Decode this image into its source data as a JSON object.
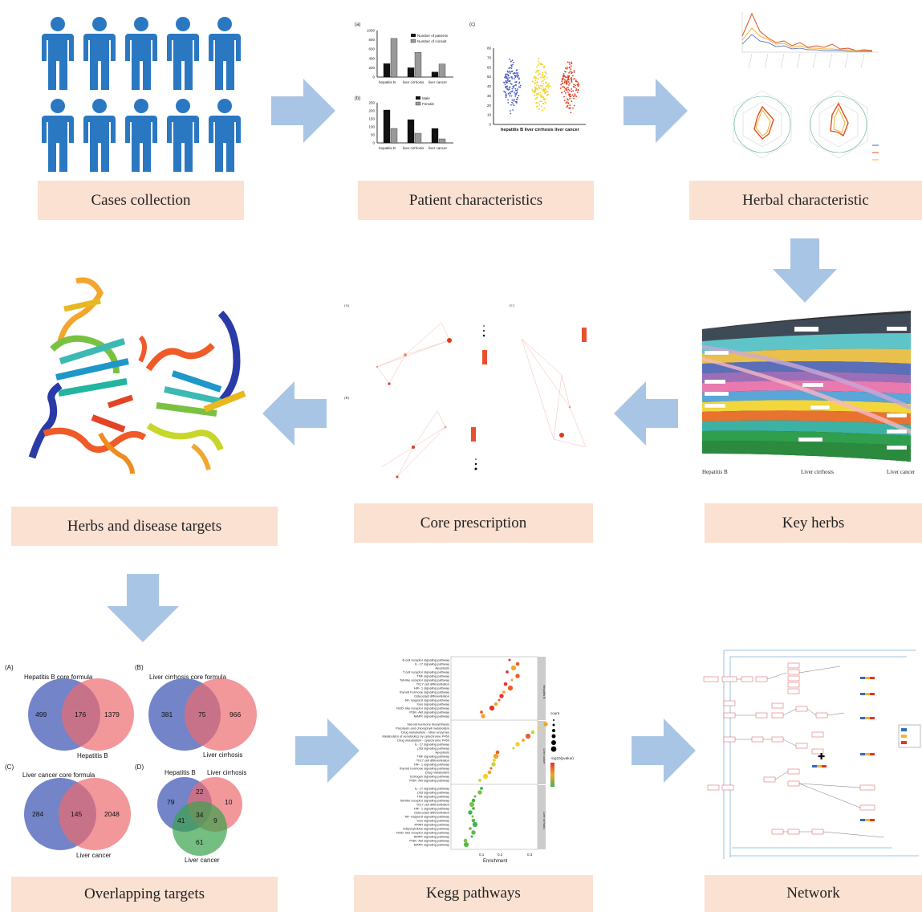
{
  "steps": {
    "cases": "Cases collection",
    "patient": "Patient characteristics",
    "herbal": "Herbal characteristic",
    "targets": "Herbs and disease targets",
    "core": "Core prescription",
    "key": "Key herbs",
    "overlap": "Overlapping targets",
    "kegg": "Kegg pathways",
    "network": "Network"
  },
  "patient_panel": {
    "a_tag": "(a)",
    "b_tag": "(b)",
    "c_tag": "(c)",
    "legend_a1": "Number of patients",
    "legend_a2": "Number of consult",
    "legend_b1": "Male",
    "legend_b2": "Female",
    "cats": [
      "hepatitis B",
      "liver cirrhosis",
      "liver cancer"
    ],
    "c_xlabel": "hepatitis B  liver cirrhosis  liver cancer",
    "a_ticks": [
      "1000",
      "800",
      "600",
      "400",
      "200",
      "0"
    ],
    "b_ticks": [
      "250",
      "200",
      "150",
      "100",
      "50",
      "0"
    ],
    "c_ticks": [
      "80",
      "70",
      "60",
      "50",
      "40",
      "30",
      "20",
      "10",
      "0"
    ]
  },
  "chart_data": [
    {
      "type": "bar",
      "title": "(a)",
      "categories": [
        "hepatitis B",
        "liver cirrhosis",
        "liver cancer"
      ],
      "series": [
        {
          "name": "Number of patients",
          "values": [
            290,
            200,
            110
          ]
        },
        {
          "name": "Number of consult",
          "values": [
            830,
            530,
            280
          ]
        }
      ],
      "ylim": [
        0,
        1000
      ]
    },
    {
      "type": "bar",
      "title": "(b)",
      "categories": [
        "hepatitis B",
        "liver cirrhosis",
        "liver cancer"
      ],
      "series": [
        {
          "name": "Male",
          "values": [
            205,
            145,
            90
          ]
        },
        {
          "name": "Female",
          "values": [
            90,
            60,
            25
          ]
        }
      ],
      "ylim": [
        0,
        250
      ]
    }
  ],
  "key_panel": {
    "x1": "Hepatitis B",
    "x2": "Liver cirrhosis",
    "x3": "Liver cancer"
  },
  "core_panel": {
    "a": "(A)",
    "b": "(B)",
    "c": "(C)"
  },
  "venn": {
    "A": {
      "tag": "(A)",
      "title": "Hepatitis B core formula",
      "left": "499",
      "mid": "176",
      "right": "1379",
      "sub": "Hepatitis B"
    },
    "B": {
      "tag": "(B)",
      "title": "Liver cirrhosis core formula",
      "left": "381",
      "mid": "75",
      "right": "966",
      "sub": "Liver cirrhosis"
    },
    "C": {
      "tag": "(C)",
      "title": "Liver cancer core formula",
      "left": "284",
      "mid": "145",
      "right": "2048",
      "sub": "Liver cancer"
    },
    "D": {
      "tag": "(D)",
      "t1": "Hepatitis B",
      "t2": "Liver cirrhosis",
      "t3": "Liver cancer",
      "n1": "79",
      "n2": "22",
      "n3": "10",
      "n4": "34",
      "n5": "41",
      "n6": "9",
      "n7": "61"
    }
  },
  "kegg": {
    "xlabel": "Enrichment",
    "xticks": [
      "0.1",
      "0.2",
      "0.3"
    ],
    "legend_count": "count",
    "legend_p": "-log10(pvalue)",
    "group1": [
      "B cell receptor signaling pathway",
      "IL- 17 signaling pathway",
      "Apoptosis",
      "T cell receptor signaling pathway",
      "TNF signaling pathway",
      "Toll-like receptor signaling pathway",
      "Th17 cell differentiation",
      "HIF- 1 signaling pathway",
      "thyroid hormone signaling pathway",
      "Osteoclast differentiation",
      "NF- kappa B signaling pathway",
      "foxo signaling pathway",
      "NOD- like receptor signaling pathway",
      "PI3K- Akt signaling pathway",
      "MAPK signaling pathway"
    ],
    "group2": [
      "Steroid hormone biosynthesis",
      "Porphyrin and chlorophyll metabolism",
      "Drug metabolism - other enzymes",
      "Metabolism of xenobiotics by cytochrome P450",
      "Drug metabolism - cytochrome P450",
      "IL- 17 signaling pathway",
      "p53 signaling pathway",
      "Apoptosis",
      "TNF signaling pathway",
      "Th17 cell differentiation",
      "HIF- 1 signaling pathway",
      "thyroid hormone signaling pathway",
      "Drug metabolism",
      "Estrogen signaling pathway",
      "PI3K- Akt signaling pathway"
    ],
    "group3": [
      "IL- 17 signaling pathway",
      "p53 signaling pathway",
      "TNF signaling pathway",
      "Toll-like receptor signaling pathway",
      "Th17 cell differentiation",
      "HIF- 1 signaling pathway",
      "Osteoclast differentiation",
      "NF- kappa B signaling pathway",
      "foxo signaling pathway",
      "PPAR signaling pathway",
      "Adipocytokine signaling pathway",
      "NOD- like receptor signaling pathway",
      "AMPK signaling pathway",
      "PI3K- Akt signaling pathway",
      "MAPK signaling pathway"
    ],
    "strips": [
      "Hepatitis B",
      "Liver cancer",
      "Liver cirrhosis"
    ]
  }
}
